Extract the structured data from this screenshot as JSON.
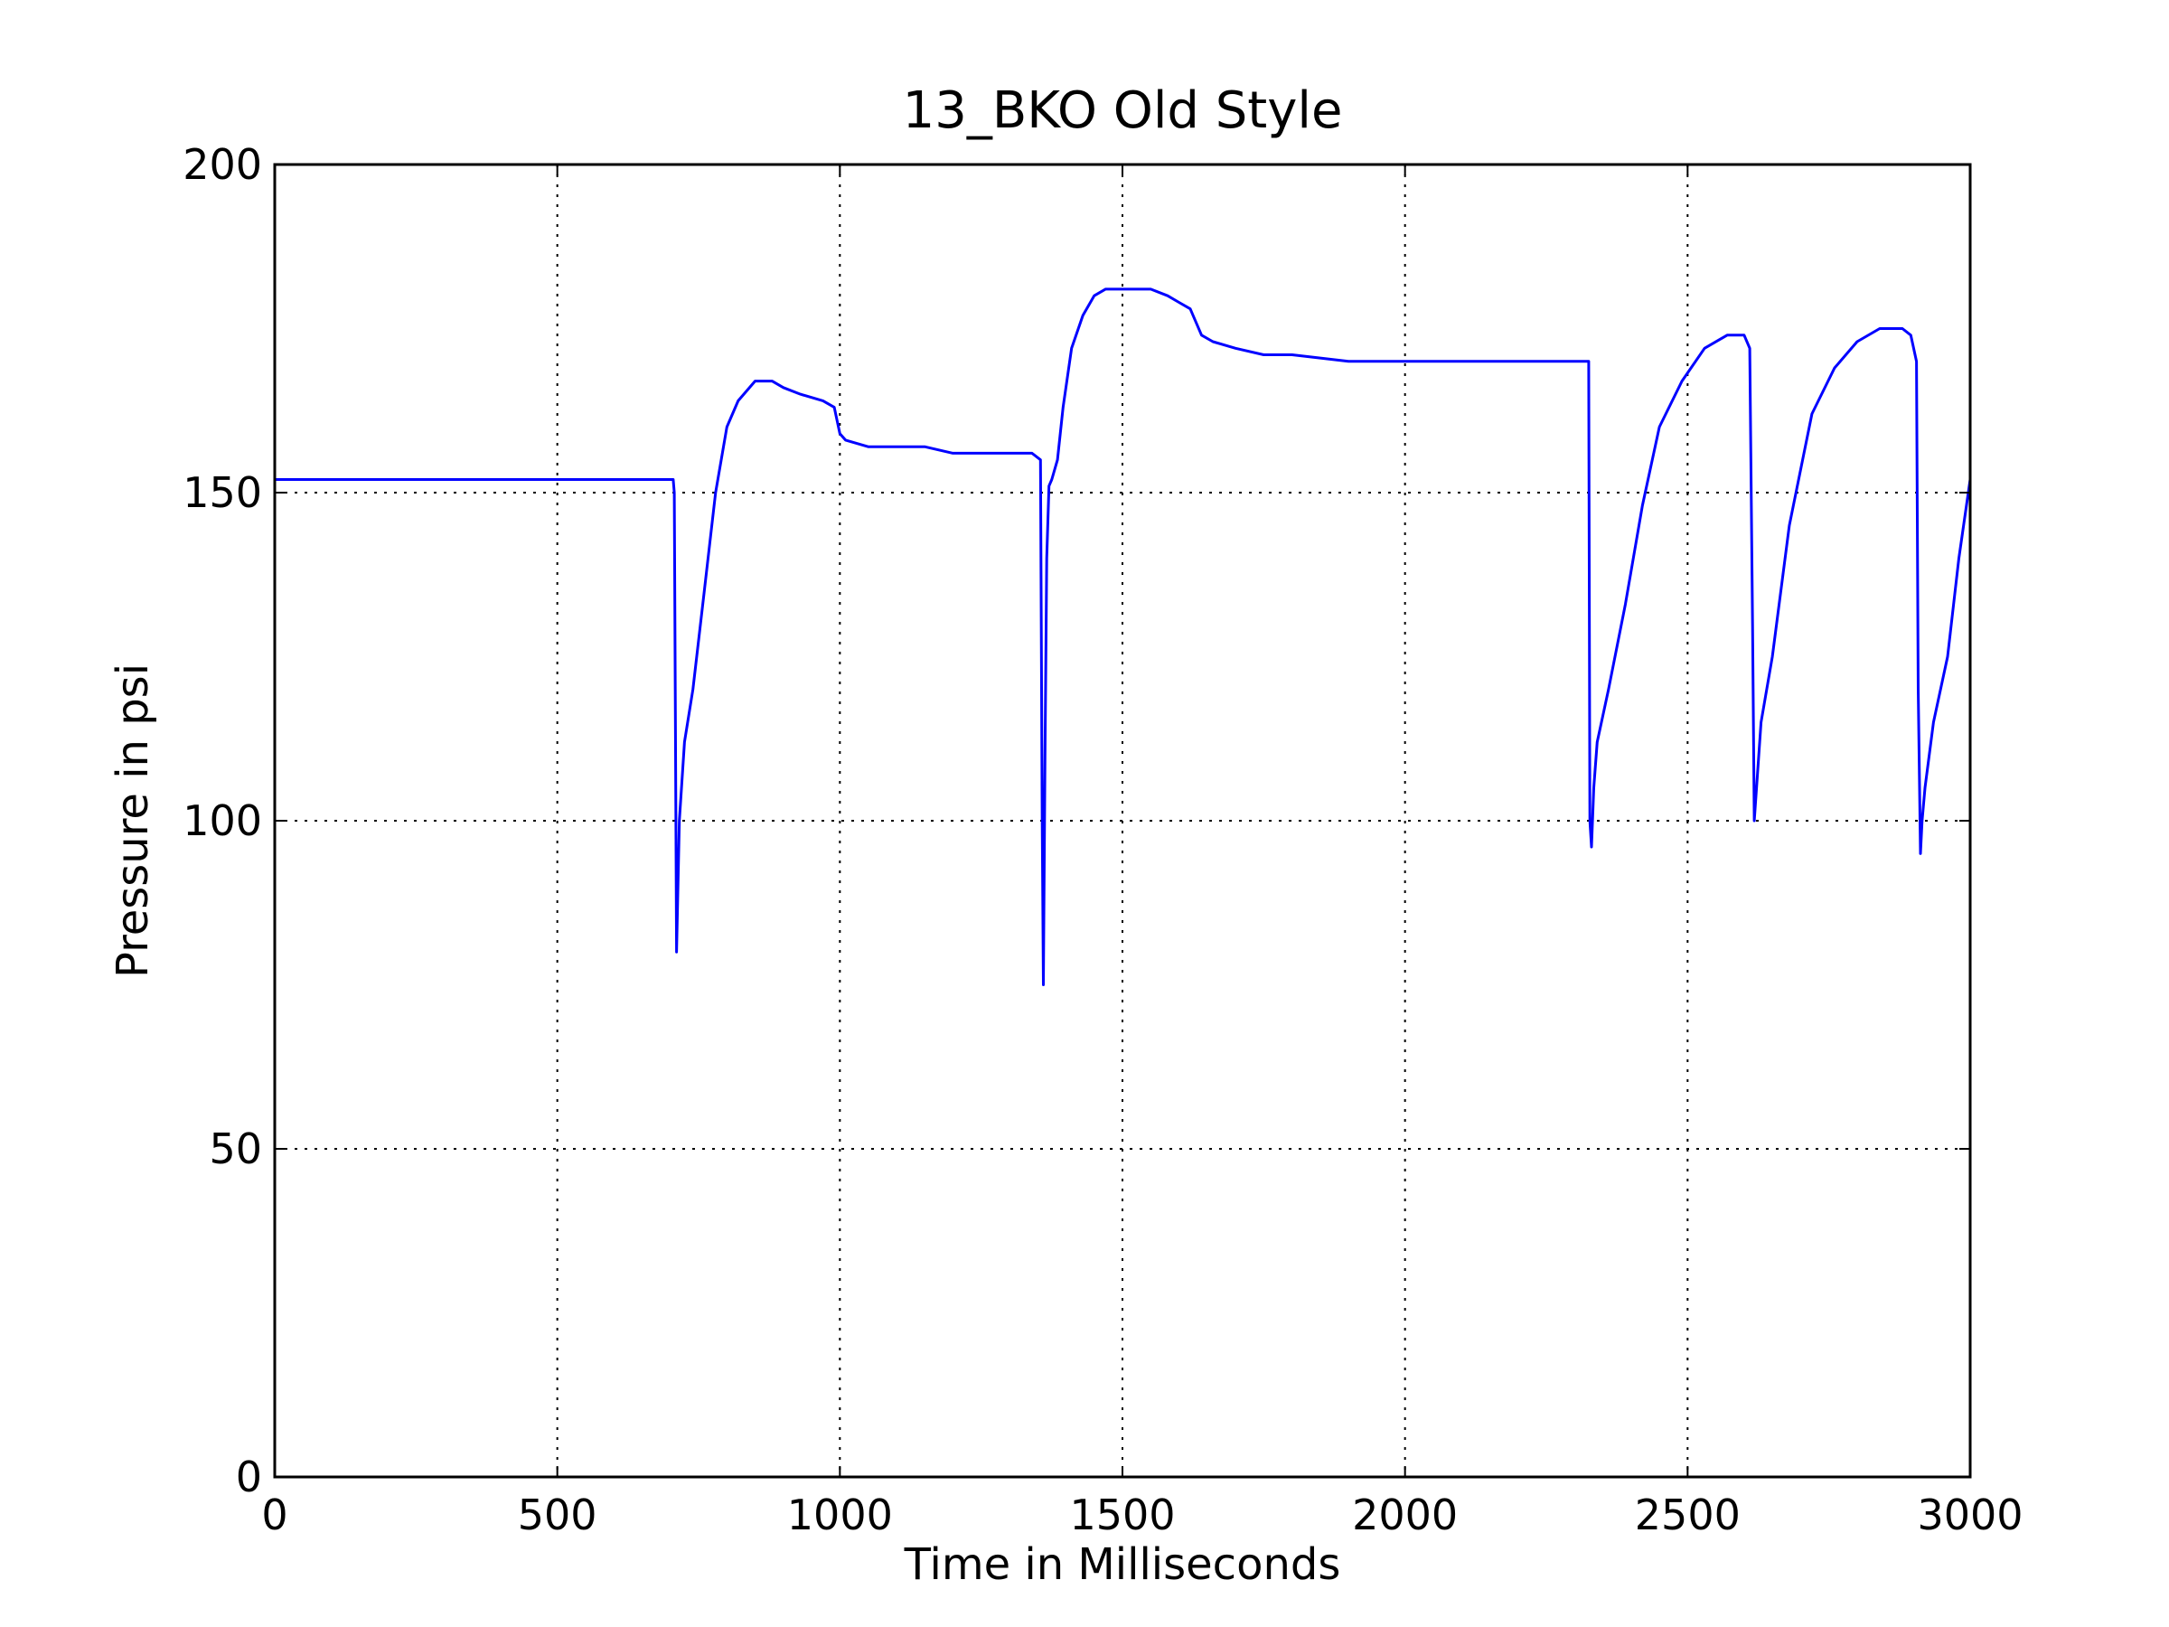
{
  "chart_data": {
    "type": "line",
    "title": "13_BKO Old Style",
    "xlabel": "Time in Milliseconds",
    "ylabel": "Pressure in psi",
    "xlim": [
      0,
      3000
    ],
    "ylim": [
      0,
      200
    ],
    "xticks": [
      0,
      500,
      1000,
      1500,
      2000,
      2500,
      3000
    ],
    "yticks": [
      0,
      50,
      100,
      150,
      200
    ],
    "xtick_labels": [
      "0",
      "500",
      "1000",
      "1500",
      "2000",
      "2500",
      "3000"
    ],
    "ytick_labels": [
      "0",
      "50",
      "100",
      "150",
      "200"
    ],
    "grid": true,
    "legend": false,
    "series": [
      {
        "color": "#0000ff",
        "x": [
          0,
          100,
          200,
          300,
          400,
          500,
          600,
          690,
          705,
          707,
          711,
          716,
          725,
          740,
          760,
          780,
          800,
          820,
          850,
          880,
          900,
          930,
          970,
          990,
          1000,
          1010,
          1050,
          1100,
          1150,
          1200,
          1250,
          1300,
          1340,
          1355,
          1358,
          1360,
          1363,
          1366,
          1370,
          1375,
          1385,
          1395,
          1410,
          1430,
          1450,
          1470,
          1490,
          1500,
          1550,
          1580,
          1600,
          1620,
          1640,
          1660,
          1700,
          1750,
          1800,
          1900,
          2000,
          2100,
          2200,
          2300,
          2325,
          2327,
          2330,
          2334,
          2340,
          2360,
          2390,
          2420,
          2450,
          2490,
          2530,
          2570,
          2600,
          2610,
          2615,
          2618,
          2622,
          2630,
          2650,
          2680,
          2720,
          2760,
          2800,
          2840,
          2880,
          2895,
          2905,
          2908,
          2912,
          2915,
          2920,
          2935,
          2960,
          2980,
          3000
        ],
        "y": [
          152,
          152,
          152,
          152,
          152,
          152,
          152,
          152,
          152,
          150,
          80,
          100,
          112,
          120,
          135,
          150,
          160,
          164,
          167,
          167,
          166,
          165,
          164,
          163,
          159,
          158,
          157,
          157,
          157,
          156,
          156,
          156,
          156,
          155,
          100,
          75,
          110,
          140,
          151,
          152,
          155,
          163,
          172,
          177,
          180,
          181,
          181,
          181,
          181,
          180,
          179,
          178,
          174,
          173,
          172,
          171,
          171,
          170,
          170,
          170,
          170,
          170,
          170,
          100,
          96,
          105,
          112,
          120,
          133,
          148,
          160,
          167,
          172,
          174,
          174,
          172,
          130,
          100,
          105,
          115,
          125,
          145,
          162,
          169,
          173,
          175,
          175,
          174,
          170,
          120,
          95,
          100,
          105,
          115,
          125,
          140,
          152
        ]
      }
    ]
  }
}
